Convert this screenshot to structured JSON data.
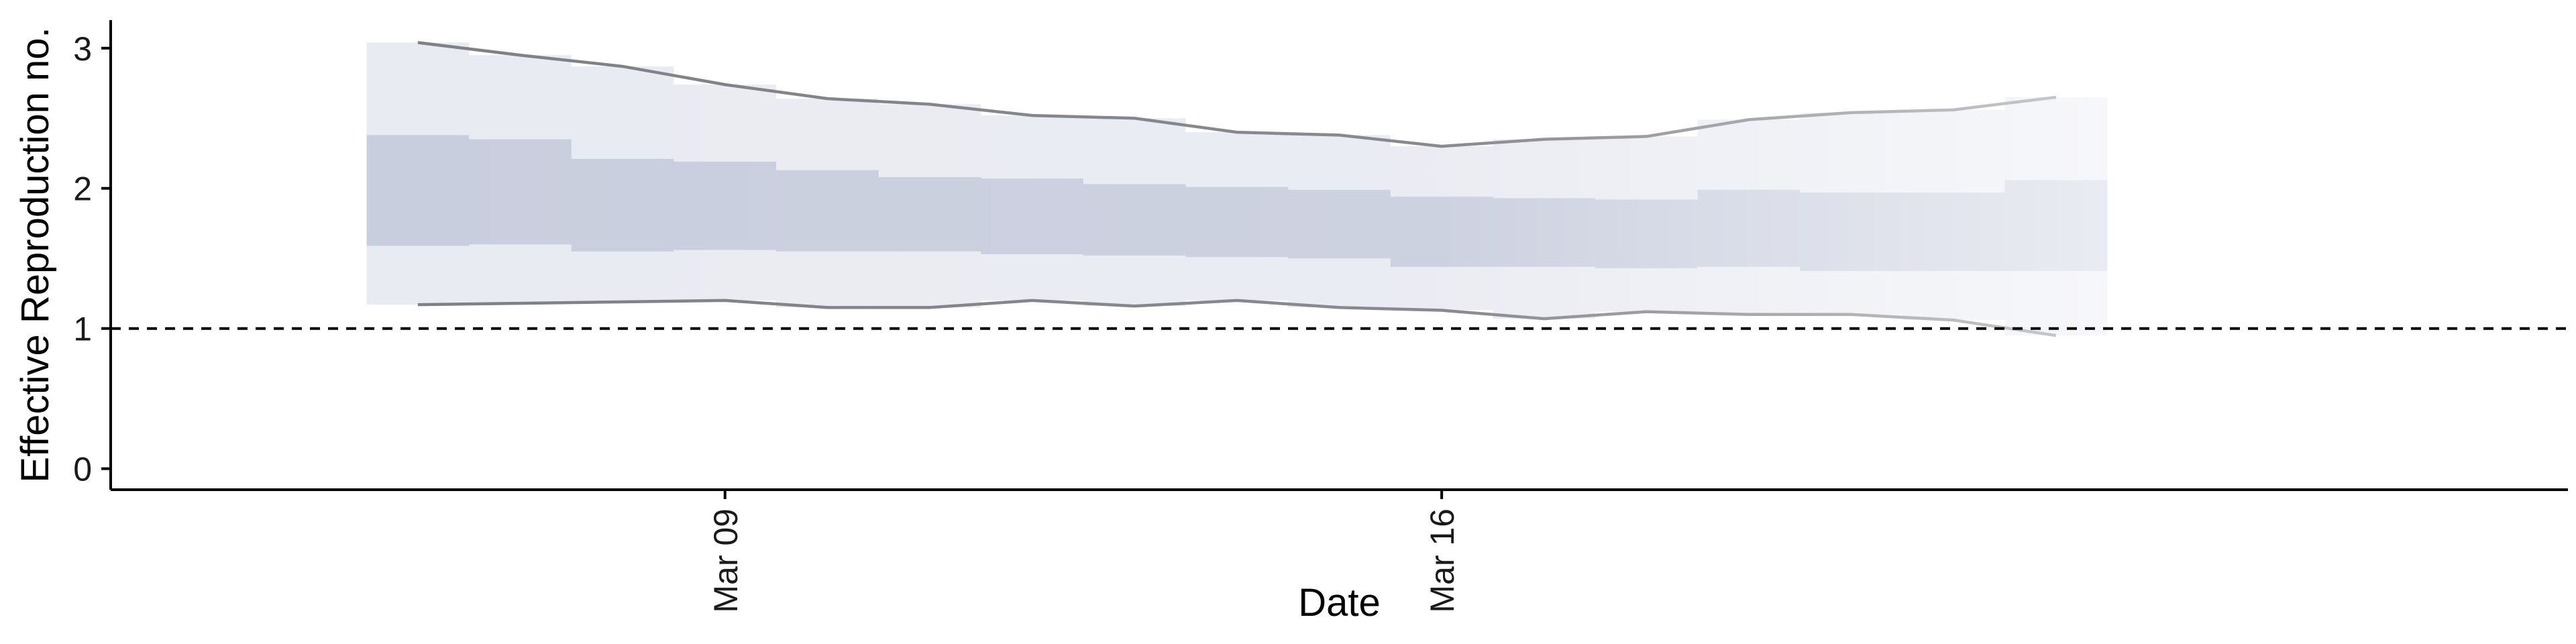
{
  "chart_data": {
    "type": "area",
    "title": "",
    "xlabel": "Date",
    "ylabel": "Effective Reproduction no.",
    "ylim": [
      -0.15,
      3.2
    ],
    "xlim": [
      "2020-03-03",
      "2020-03-27"
    ],
    "grid": false,
    "legend": "none",
    "reference_line": {
      "y": 1,
      "style": "dashed",
      "color": "#000000"
    },
    "x_ticks": [
      {
        "date": "2020-03-09",
        "label": "Mar 09"
      },
      {
        "date": "2020-03-16",
        "label": "Mar 16"
      }
    ],
    "y_ticks": [
      0,
      1,
      2,
      3
    ],
    "dates": [
      "2020-03-06",
      "2020-03-07",
      "2020-03-08",
      "2020-03-09",
      "2020-03-10",
      "2020-03-11",
      "2020-03-12",
      "2020-03-13",
      "2020-03-14",
      "2020-03-15",
      "2020-03-16",
      "2020-03-17",
      "2020-03-18",
      "2020-03-19",
      "2020-03-20",
      "2020-03-21",
      "2020-03-22"
    ],
    "series": [
      {
        "name": "",
        "role": "90% credible interval lower",
        "values": [
          1.17,
          1.18,
          1.19,
          1.2,
          1.15,
          1.15,
          1.2,
          1.16,
          1.2,
          1.15,
          1.13,
          1.07,
          1.12,
          1.1,
          1.1,
          1.06,
          0.95
        ]
      },
      {
        "name": "",
        "role": "90% credible interval upper",
        "values": [
          3.04,
          2.95,
          2.87,
          2.74,
          2.64,
          2.6,
          2.52,
          2.5,
          2.4,
          2.38,
          2.3,
          2.35,
          2.37,
          2.49,
          2.54,
          2.56,
          2.65
        ]
      },
      {
        "name": "",
        "role": "50% credible interval lower",
        "values": [
          1.59,
          1.6,
          1.55,
          1.56,
          1.55,
          1.55,
          1.53,
          1.52,
          1.51,
          1.5,
          1.44,
          1.44,
          1.43,
          1.44,
          1.41,
          1.41,
          1.41
        ]
      },
      {
        "name": "",
        "role": "50% credible interval upper",
        "values": [
          2.38,
          2.35,
          2.21,
          2.19,
          2.13,
          2.08,
          2.07,
          2.03,
          2.01,
          1.99,
          1.94,
          1.93,
          1.92,
          1.99,
          1.97,
          1.97,
          2.06
        ]
      }
    ],
    "colors": {
      "outer_band": "#e9ebf2",
      "inner_band": "#c9cede",
      "bound_line": "#7f7f86",
      "axis": "#000000"
    }
  }
}
